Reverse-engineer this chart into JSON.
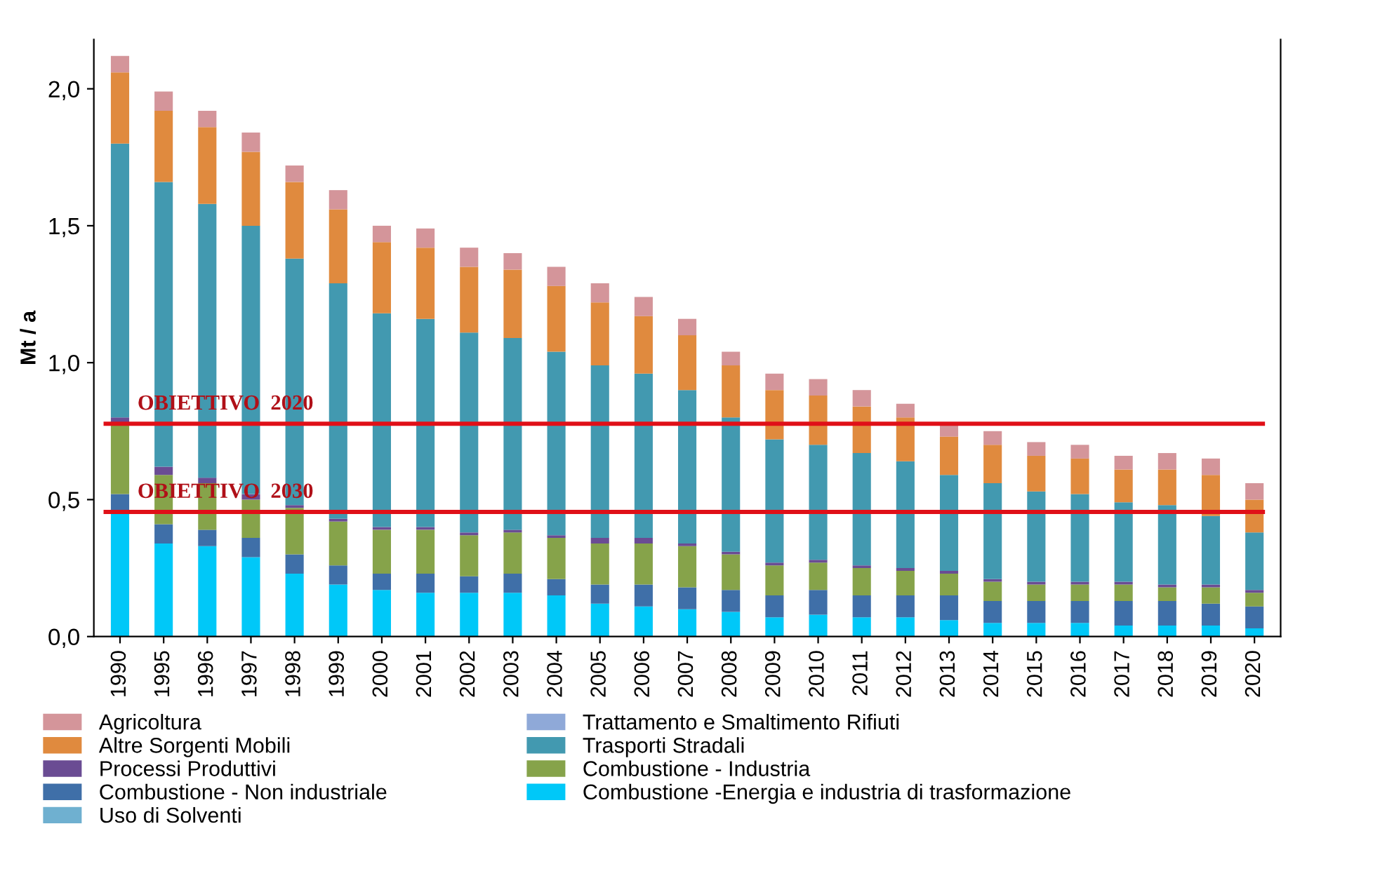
{
  "chart_data": {
    "type": "bar",
    "stacked": true,
    "ylabel": "Mt / a",
    "categories": [
      "1990",
      "1995",
      "1996",
      "1997",
      "1998",
      "1999",
      "2000",
      "2001",
      "2002",
      "2003",
      "2004",
      "2005",
      "2006",
      "2007",
      "2008",
      "2009",
      "2010",
      "2011",
      "2012",
      "2013",
      "2014",
      "2015",
      "2016",
      "2017",
      "2018",
      "2019",
      "2020"
    ],
    "series": [
      {
        "name": "Uso di Solventi",
        "color": "#6fb0d0",
        "values": [
          0,
          0,
          0,
          0,
          0,
          0,
          0,
          0,
          0,
          0,
          0,
          0,
          0,
          0,
          0,
          0,
          0,
          0,
          0,
          0,
          0,
          0,
          0,
          0,
          0,
          0,
          0
        ]
      },
      {
        "name": "Combustione -Energia e industria di trasformazione",
        "color": "#00c8f8",
        "values": [
          0.46,
          0.34,
          0.33,
          0.29,
          0.23,
          0.19,
          0.17,
          0.16,
          0.16,
          0.16,
          0.15,
          0.12,
          0.11,
          0.1,
          0.09,
          0.07,
          0.08,
          0.07,
          0.07,
          0.06,
          0.05,
          0.05,
          0.05,
          0.04,
          0.04,
          0.04,
          0.03
        ]
      },
      {
        "name": "Combustione - Non industriale",
        "color": "#3f6fa8",
        "values": [
          0.06,
          0.07,
          0.06,
          0.07,
          0.07,
          0.07,
          0.06,
          0.07,
          0.06,
          0.07,
          0.06,
          0.07,
          0.08,
          0.08,
          0.08,
          0.08,
          0.09,
          0.08,
          0.08,
          0.09,
          0.08,
          0.08,
          0.08,
          0.09,
          0.09,
          0.08,
          0.08
        ]
      },
      {
        "name": "Combustione - Industria",
        "color": "#86a34a",
        "values": [
          0.25,
          0.18,
          0.17,
          0.14,
          0.17,
          0.16,
          0.16,
          0.16,
          0.15,
          0.15,
          0.15,
          0.15,
          0.15,
          0.15,
          0.13,
          0.11,
          0.1,
          0.1,
          0.09,
          0.08,
          0.07,
          0.06,
          0.06,
          0.06,
          0.05,
          0.06,
          0.05
        ]
      },
      {
        "name": "Processi Produttivi",
        "color": "#6a4c93",
        "values": [
          0.03,
          0.03,
          0.02,
          0.02,
          0.01,
          0.01,
          0.01,
          0.01,
          0.01,
          0.01,
          0.01,
          0.02,
          0.02,
          0.01,
          0.01,
          0.01,
          0.01,
          0.01,
          0.01,
          0.01,
          0.01,
          0.01,
          0.01,
          0.01,
          0.01,
          0.01,
          0.01
        ]
      },
      {
        "name": "Trasporti Stradali",
        "color": "#4299b0",
        "values": [
          1.0,
          1.04,
          1.0,
          0.98,
          0.9,
          0.86,
          0.78,
          0.76,
          0.73,
          0.7,
          0.67,
          0.63,
          0.6,
          0.56,
          0.49,
          0.45,
          0.42,
          0.41,
          0.39,
          0.35,
          0.35,
          0.33,
          0.32,
          0.29,
          0.29,
          0.25,
          0.21
        ]
      },
      {
        "name": "Altre Sorgenti Mobili",
        "color": "#e08a3e",
        "values": [
          0.26,
          0.26,
          0.28,
          0.27,
          0.28,
          0.27,
          0.26,
          0.26,
          0.24,
          0.25,
          0.24,
          0.23,
          0.21,
          0.2,
          0.19,
          0.18,
          0.18,
          0.17,
          0.16,
          0.14,
          0.14,
          0.13,
          0.13,
          0.12,
          0.13,
          0.15,
          0.12
        ]
      },
      {
        "name": "Trattamento e Smaltimento Rifiuti",
        "color": "#8fa9d8",
        "values": [
          0,
          0,
          0,
          0,
          0,
          0,
          0,
          0,
          0,
          0,
          0,
          0,
          0,
          0,
          0,
          0,
          0,
          0,
          0,
          0,
          0,
          0,
          0,
          0,
          0,
          0,
          0
        ]
      },
      {
        "name": "Agricoltura",
        "color": "#d4959a",
        "values": [
          0.06,
          0.07,
          0.06,
          0.07,
          0.06,
          0.07,
          0.06,
          0.07,
          0.07,
          0.06,
          0.07,
          0.07,
          0.07,
          0.06,
          0.05,
          0.06,
          0.06,
          0.06,
          0.05,
          0.05,
          0.05,
          0.05,
          0.05,
          0.05,
          0.06,
          0.06,
          0.06
        ]
      }
    ],
    "ylim": [
      0,
      2.18
    ],
    "yticks": [
      {
        "value": 0,
        "label": "0,0"
      },
      {
        "value": 0.5,
        "label": "0,5"
      },
      {
        "value": 1.0,
        "label": "1,0"
      },
      {
        "value": 1.5,
        "label": "1,5"
      },
      {
        "value": 2.0,
        "label": "2,0"
      }
    ],
    "ref_lines": [
      {
        "axis": "y",
        "value": 0.777,
        "label": "OBIETTIVO  2020",
        "color": "#e01018"
      },
      {
        "axis": "y",
        "value": 0.455,
        "label": "OBIETTIVO  2030",
        "color": "#e01018"
      }
    ],
    "legend": "bottom",
    "grid": false
  }
}
